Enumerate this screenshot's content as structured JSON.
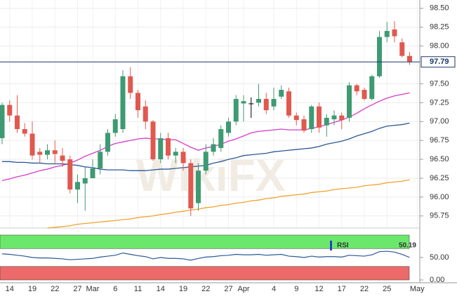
{
  "chart_data": [
    {
      "type": "candlestick",
      "categories": [
        null,
        "14",
        null,
        null,
        "19",
        null,
        null,
        "22",
        null,
        null,
        "27",
        null,
        "Mar",
        null,
        null,
        "6",
        null,
        null,
        "11",
        null,
        null,
        "14",
        null,
        null,
        "19",
        null,
        null,
        "22",
        null,
        null,
        "27",
        null,
        "Apr",
        null,
        null,
        null,
        "4",
        null,
        null,
        "9",
        null,
        null,
        "12",
        null,
        null,
        "17",
        null,
        null,
        "22",
        null,
        null,
        "25",
        null,
        null,
        null,
        "May"
      ],
      "open": [
        96.78,
        97.22,
        97.08,
        96.9,
        96.84,
        96.6,
        96.56,
        96.62,
        96.55,
        96.5,
        96.1,
        96.18,
        96.25,
        96.38,
        96.6,
        96.85,
        96.9,
        97.6,
        97.38,
        97.2,
        97.0,
        96.5,
        96.78,
        96.55,
        96.6,
        96.45,
        95.92,
        96.35,
        96.6,
        96.65,
        96.85,
        97.0,
        97.24,
        97.24,
        97.25,
        97.3,
        97.2,
        97.33,
        97.4,
        97.08,
        97.03,
        96.9,
        97.2,
        96.95,
        97.03,
        97.08,
        97.05,
        97.48,
        97.42,
        97.3,
        97.6,
        98.12,
        98.22,
        98.05,
        97.87,
        null
      ],
      "high": [
        97.25,
        97.28,
        97.35,
        96.98,
        97.0,
        96.65,
        96.7,
        96.75,
        96.65,
        96.55,
        96.3,
        96.4,
        96.5,
        96.7,
        96.9,
        97.1,
        97.68,
        97.72,
        97.42,
        97.28,
        97.02,
        96.85,
        96.85,
        96.65,
        96.65,
        96.5,
        96.45,
        96.7,
        96.78,
        96.95,
        97.05,
        97.35,
        97.35,
        97.32,
        97.5,
        97.38,
        97.45,
        97.48,
        97.45,
        97.12,
        97.08,
        97.22,
        97.25,
        97.1,
        97.15,
        97.12,
        97.52,
        97.5,
        97.45,
        97.62,
        98.2,
        98.32,
        98.33,
        98.1,
        97.92,
        null
      ],
      "low": [
        96.7,
        97.0,
        96.85,
        96.8,
        96.5,
        96.45,
        96.5,
        96.45,
        96.4,
        96.05,
        95.92,
        95.82,
        96.25,
        96.3,
        96.55,
        96.8,
        96.85,
        97.3,
        97.05,
        96.9,
        96.48,
        96.45,
        96.5,
        96.45,
        96.35,
        95.75,
        95.82,
        96.3,
        96.55,
        96.6,
        96.8,
        96.95,
        97.0,
        97.05,
        97.2,
        97.1,
        97.15,
        97.3,
        97.05,
        96.95,
        96.85,
        96.85,
        96.85,
        96.8,
        96.95,
        96.9,
        97.0,
        97.35,
        97.28,
        97.28,
        97.58,
        98.05,
        98.05,
        97.85,
        97.75,
        null
      ],
      "close": [
        97.22,
        97.08,
        96.9,
        96.84,
        96.55,
        96.56,
        96.62,
        96.57,
        96.48,
        96.1,
        96.2,
        96.25,
        96.38,
        96.6,
        96.85,
        97.03,
        97.6,
        97.38,
        97.15,
        97.0,
        96.5,
        96.78,
        96.55,
        96.6,
        96.45,
        95.85,
        96.35,
        96.6,
        96.7,
        96.9,
        97.0,
        97.3,
        97.27,
        97.24,
        97.3,
        97.15,
        97.3,
        97.42,
        97.08,
        97.02,
        96.88,
        97.2,
        96.92,
        97.05,
        97.08,
        97.02,
        97.48,
        97.4,
        97.3,
        97.6,
        98.12,
        98.2,
        98.13,
        97.87,
        97.79,
        null
      ],
      "up_color": "#3e9a73",
      "down_color": "#e0594e",
      "flat_color": "#000000",
      "overlays": [
        {
          "color": "#d63ccc",
          "values": [
            96.22,
            96.24,
            96.27,
            96.29,
            96.32,
            96.35,
            96.37,
            96.4,
            96.42,
            96.45,
            96.49,
            96.54,
            96.58,
            96.62,
            96.67,
            96.71,
            96.73,
            96.75,
            96.77,
            96.78,
            96.77,
            96.77,
            96.76,
            96.76,
            96.71,
            96.66,
            96.62,
            96.65,
            96.67,
            96.7,
            96.74,
            96.77,
            96.81,
            96.85,
            96.87,
            96.88,
            96.89,
            96.9,
            96.89,
            96.89,
            96.89,
            96.91,
            96.93,
            96.96,
            96.99,
            97.02,
            97.06,
            97.11,
            97.17,
            97.22,
            97.27,
            97.31,
            97.34,
            97.36,
            97.38,
            null
          ]
        },
        {
          "color": "#2b5797",
          "values": [
            96.47,
            96.47,
            96.46,
            96.46,
            96.45,
            96.45,
            96.44,
            96.44,
            96.44,
            96.43,
            96.42,
            96.4,
            96.39,
            96.37,
            96.36,
            96.36,
            96.36,
            96.35,
            96.35,
            96.35,
            96.36,
            96.37,
            96.37,
            96.38,
            96.39,
            96.4,
            96.41,
            96.42,
            96.45,
            96.47,
            96.5,
            96.52,
            96.55,
            96.56,
            96.57,
            96.58,
            96.6,
            96.61,
            96.62,
            96.63,
            96.64,
            96.65,
            96.67,
            96.7,
            96.72,
            96.74,
            96.77,
            96.81,
            96.84,
            96.87,
            96.91,
            96.94,
            96.95,
            96.96,
            96.98,
            null
          ]
        },
        {
          "color": "#f0a22e",
          "values": [
            null,
            null,
            null,
            null,
            null,
            null,
            95.59,
            95.6,
            95.61,
            95.62,
            95.64,
            95.65,
            95.66,
            95.67,
            95.68,
            95.69,
            95.7,
            95.71,
            95.73,
            95.74,
            95.75,
            95.77,
            95.78,
            95.8,
            95.81,
            95.83,
            95.84,
            95.86,
            95.87,
            95.89,
            95.9,
            95.92,
            95.93,
            95.95,
            95.96,
            95.98,
            95.99,
            96.01,
            96.02,
            96.03,
            96.04,
            96.06,
            96.07,
            96.08,
            96.1,
            96.11,
            96.12,
            96.13,
            96.15,
            96.16,
            96.17,
            96.19,
            96.2,
            96.21,
            96.23,
            null
          ]
        }
      ],
      "ylim": [
        95.59,
        98.61
      ],
      "yticks": [
        95.75,
        {
          "value": 96,
          "label": "96.00"
        },
        96.25,
        {
          "value": 96.5,
          "label": "96.50"
        },
        96.75,
        {
          "value": 97,
          "label": "97.00"
        },
        97.25,
        {
          "value": 97.5,
          "label": "97.50"
        },
        {
          "value": 98,
          "label": "98.00"
        },
        98.25,
        {
          "value": 98.5,
          "label": "98.50"
        }
      ],
      "price_line": 97.79,
      "price_color": "#1d3768",
      "grid": true,
      "watermark": "WikiFX"
    },
    {
      "type": "line",
      "name": "RSI",
      "color": "#2b5797",
      "values": [
        58,
        57,
        55,
        53,
        50,
        49,
        49,
        48,
        47,
        45,
        46,
        47,
        48,
        51,
        53,
        55,
        60,
        57,
        54,
        52,
        47,
        50,
        48,
        48,
        47,
        44,
        48,
        51,
        52,
        54,
        55,
        57,
        56,
        56,
        57,
        55,
        56,
        57,
        53,
        52,
        50,
        53,
        51,
        52,
        52,
        51,
        55,
        54,
        53,
        56,
        63,
        64,
        62,
        57,
        50.19,
        null
      ],
      "current": 50.19,
      "ylim": [
        0,
        100
      ],
      "yticks": [
        {
          "value": 0,
          "label": "0.00"
        },
        {
          "value": 50,
          "label": "50.00"
        }
      ],
      "bands": [
        {
          "from": 70,
          "to": 100,
          "color": "#6be86b"
        },
        {
          "from": 0,
          "to": 30,
          "color": "#ec6a6a"
        }
      ]
    }
  ]
}
